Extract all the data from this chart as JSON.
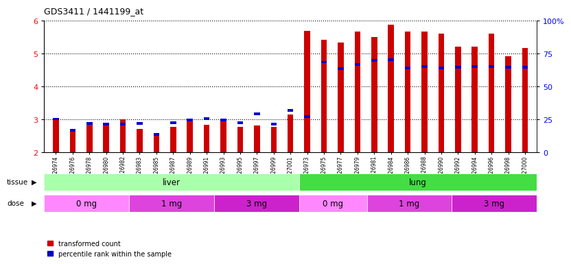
{
  "title": "GDS3411 / 1441199_at",
  "samples": [
    "GSM326974",
    "GSM326976",
    "GSM326978",
    "GSM326980",
    "GSM326982",
    "GSM326983",
    "GSM326985",
    "GSM326987",
    "GSM326989",
    "GSM326991",
    "GSM326993",
    "GSM326995",
    "GSM326997",
    "GSM326999",
    "GSM327001",
    "GSM326973",
    "GSM326975",
    "GSM326977",
    "GSM326979",
    "GSM326981",
    "GSM326984",
    "GSM326986",
    "GSM326988",
    "GSM326990",
    "GSM326992",
    "GSM326994",
    "GSM326996",
    "GSM326998",
    "GSM327000"
  ],
  "red_values": [
    3.0,
    2.65,
    2.85,
    2.88,
    3.0,
    2.72,
    2.58,
    2.77,
    3.04,
    2.85,
    3.04,
    2.77,
    2.82,
    2.77,
    3.15,
    5.7,
    5.42,
    5.35,
    5.68,
    5.5,
    5.88,
    5.68,
    5.68,
    5.62,
    5.22,
    5.22,
    5.62,
    4.92,
    5.18
  ],
  "blue_values": [
    3.02,
    2.68,
    2.88,
    2.87,
    2.87,
    2.88,
    2.55,
    2.9,
    2.99,
    3.03,
    2.98,
    2.9,
    3.17,
    2.87,
    3.28,
    3.1,
    4.75,
    4.55,
    4.68,
    4.8,
    4.82,
    4.57,
    4.62,
    4.58,
    4.6,
    4.62,
    4.62,
    4.6,
    4.6
  ],
  "tissue_groups": [
    {
      "label": "liver",
      "start": 0,
      "end": 14,
      "color": "#aaffaa"
    },
    {
      "label": "lung",
      "start": 15,
      "end": 28,
      "color": "#44dd44"
    }
  ],
  "dose_groups": [
    {
      "label": "0 mg",
      "start": 0,
      "end": 4,
      "color": "#ff88ff"
    },
    {
      "label": "1 mg",
      "start": 5,
      "end": 9,
      "color": "#dd44dd"
    },
    {
      "label": "3 mg",
      "start": 10,
      "end": 14,
      "color": "#cc22cc"
    },
    {
      "label": "0 mg",
      "start": 15,
      "end": 18,
      "color": "#ff88ff"
    },
    {
      "label": "1 mg",
      "start": 19,
      "end": 23,
      "color": "#dd44dd"
    },
    {
      "label": "3 mg",
      "start": 24,
      "end": 28,
      "color": "#cc22cc"
    }
  ],
  "ylim": [
    2.0,
    6.0
  ],
  "y_left_ticks": [
    2,
    3,
    4,
    5,
    6
  ],
  "right_tick_positions": [
    2.0,
    3.0,
    4.0,
    5.0,
    6.0
  ],
  "right_tick_labels": [
    "0",
    "25",
    "50",
    "75",
    "100%"
  ],
  "bar_color_red": "#cc0000",
  "bar_color_blue": "#0000cc",
  "bar_width": 0.35,
  "blue_bar_width": 0.35,
  "blue_bar_height": 0.08,
  "legend_red": "transformed count",
  "legend_blue": "percentile rank within the sample",
  "baseline": 2.0
}
